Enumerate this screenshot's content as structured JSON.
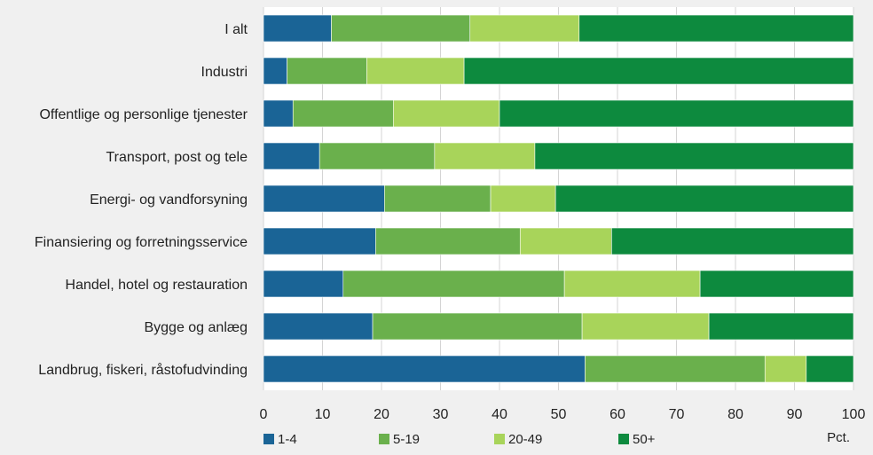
{
  "chart_data": {
    "type": "bar",
    "orientation": "horizontal",
    "stacked": true,
    "categories": [
      "I alt",
      "Industri",
      "Offentlige og personlige tjenester",
      "Transport, post og tele",
      "Energi- og vandforsyning",
      "Finansiering og forretningsservice",
      "Handel, hotel og restauration",
      "Bygge og anlæg",
      "Landbrug, fiskeri, råstofudvinding"
    ],
    "series": [
      {
        "name": "1-4",
        "color": "#1a6496",
        "values": [
          11.5,
          4,
          5,
          9.5,
          20.5,
          19,
          13.5,
          18.5,
          54.5
        ]
      },
      {
        "name": "5-19",
        "color": "#6ab04c",
        "values": [
          23.5,
          13.5,
          17,
          19.5,
          18,
          24.5,
          37.5,
          35.5,
          30.5
        ]
      },
      {
        "name": "20-49",
        "color": "#a8d45a",
        "values": [
          18.5,
          16.5,
          18,
          17,
          11,
          15.5,
          23,
          21.5,
          7
        ]
      },
      {
        "name": "50+",
        "color": "#0d8a3e",
        "values": [
          46.5,
          66,
          60,
          54,
          50.5,
          41,
          26,
          24.5,
          8
        ]
      }
    ],
    "xlim": [
      0,
      100
    ],
    "xticks": [
      "0",
      "10",
      "20",
      "30",
      "40",
      "50",
      "60",
      "70",
      "80",
      "90",
      "100"
    ],
    "xunit": "Pct.",
    "grid": true,
    "legend_position": "bottom"
  }
}
